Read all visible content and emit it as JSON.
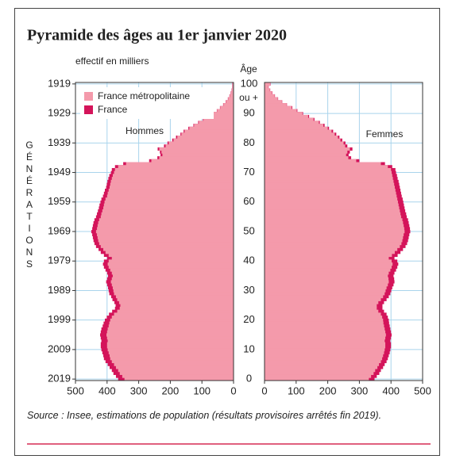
{
  "chart_data": {
    "type": "pyramid",
    "title": "Pyramide des âges au 1er janvier 2020",
    "subtitle": "effectif en milliers",
    "y_label": "Âge",
    "y_top_note": "ou +",
    "generations_label": "GÉNÉRATIONS",
    "left_label": "Hommes",
    "right_label": "Femmes",
    "source": "Source : Insee, estimations de population (résultats provisoires arrêtés fin 2019).",
    "y": [
      0,
      1,
      2,
      3,
      4,
      5,
      6,
      7,
      8,
      9,
      10,
      11,
      12,
      13,
      14,
      15,
      16,
      17,
      18,
      19,
      20,
      21,
      22,
      23,
      24,
      25,
      26,
      27,
      28,
      29,
      30,
      31,
      32,
      33,
      34,
      35,
      36,
      37,
      38,
      39,
      40,
      41,
      42,
      43,
      44,
      45,
      46,
      47,
      48,
      49,
      50,
      51,
      52,
      53,
      54,
      55,
      56,
      57,
      58,
      59,
      60,
      61,
      62,
      63,
      64,
      65,
      66,
      67,
      68,
      69,
      70,
      71,
      72,
      73,
      74,
      75,
      76,
      77,
      78,
      79,
      80,
      81,
      82,
      83,
      84,
      85,
      86,
      87,
      88,
      89,
      90,
      91,
      92,
      93,
      94,
      95,
      96,
      97,
      98,
      99,
      100
    ],
    "series": [
      {
        "name": "France métropolitaine",
        "color": "#f49aab",
        "men": [
          345,
          352,
          360,
          365,
          372,
          378,
          385,
          390,
          392,
          395,
          398,
          400,
          400,
          398,
          400,
          402,
          400,
          398,
          395,
          393,
          390,
          385,
          378,
          368,
          360,
          358,
          362,
          368,
          372,
          378,
          380,
          382,
          385,
          388,
          385,
          382,
          385,
          390,
          395,
          398,
          395,
          385,
          395,
          405,
          412,
          420,
          425,
          428,
          430,
          432,
          435,
          432,
          430,
          428,
          425,
          420,
          418,
          415,
          412,
          410,
          408,
          405,
          400,
          398,
          395,
          392,
          390,
          388,
          385,
          382,
          378,
          375,
          365,
          340,
          260,
          235,
          225,
          228,
          235,
          215,
          205,
          190,
          178,
          165,
          155,
          140,
          125,
          110,
          95,
          80,
          65,
          52,
          42,
          32,
          24,
          17,
          12,
          8,
          5,
          3,
          3
        ],
        "women": [
          330,
          337,
          345,
          350,
          357,
          362,
          368,
          372,
          375,
          378,
          380,
          382,
          382,
          380,
          382,
          384,
          382,
          380,
          378,
          376,
          375,
          372,
          368,
          360,
          355,
          355,
          360,
          368,
          375,
          380,
          383,
          386,
          390,
          393,
          392,
          390,
          393,
          398,
          402,
          405,
          402,
          393,
          403,
          412,
          420,
          428,
          433,
          436,
          438,
          440,
          443,
          442,
          440,
          438,
          436,
          432,
          430,
          428,
          426,
          424,
          422,
          420,
          418,
          416,
          414,
          412,
          410,
          408,
          406,
          404,
          402,
          400,
          390,
          368,
          290,
          265,
          258,
          262,
          270,
          255,
          250,
          240,
          232,
          222,
          212,
          200,
          186,
          172,
          155,
          138,
          120,
          102,
          86,
          70,
          55,
          42,
          32,
          24,
          17,
          12,
          18
        ]
      },
      {
        "name": "France",
        "color": "#d4145a",
        "men": [
          365,
          372,
          380,
          385,
          392,
          398,
          405,
          410,
          412,
          415,
          418,
          420,
          420,
          418,
          420,
          422,
          420,
          418,
          414,
          411,
          407,
          401,
          394,
          384,
          375,
          373,
          377,
          383,
          387,
          393,
          395,
          397,
          400,
          403,
          400,
          397,
          400,
          405,
          410,
          413,
          410,
          400,
          410,
          420,
          427,
          435,
          440,
          443,
          445,
          447,
          450,
          447,
          445,
          443,
          440,
          435,
          432,
          429,
          426,
          424,
          421,
          418,
          413,
          410,
          407,
          403,
          401,
          399,
          396,
          393,
          388,
          385,
          375,
          349,
          267,
          241,
          231,
          233,
          240,
          220,
          209,
          194,
          182,
          168,
          158,
          143,
          127,
          112,
          97,
          82,
          66,
          53,
          43,
          33,
          25,
          18,
          13,
          9,
          6,
          4,
          4
        ],
        "women": [
          348,
          355,
          363,
          368,
          375,
          380,
          386,
          390,
          393,
          396,
          398,
          400,
          400,
          398,
          400,
          402,
          400,
          398,
          396,
          394,
          393,
          390,
          386,
          378,
          373,
          373,
          378,
          386,
          393,
          398,
          401,
          404,
          408,
          411,
          410,
          408,
          411,
          416,
          420,
          423,
          420,
          411,
          421,
          430,
          438,
          446,
          451,
          454,
          456,
          458,
          461,
          460,
          458,
          456,
          454,
          450,
          448,
          445,
          443,
          441,
          439,
          437,
          434,
          432,
          430,
          428,
          426,
          424,
          421,
          419,
          416,
          414,
          404,
          381,
          300,
          274,
          266,
          270,
          278,
          262,
          256,
          246,
          237,
          227,
          217,
          204,
          190,
          175,
          158,
          141,
          122,
          104,
          88,
          71,
          56,
          43,
          33,
          25,
          18,
          13,
          19
        ]
      }
    ],
    "xlim": [
      0,
      500
    ],
    "xticks": [
      0,
      100,
      200,
      300,
      400,
      500
    ],
    "ylim": [
      -0.5,
      100.5
    ],
    "yticks": [
      0,
      10,
      20,
      30,
      40,
      50,
      60,
      70,
      80,
      90,
      100
    ],
    "generation_ticks": [
      {
        "value": 0,
        "label": "2019"
      },
      {
        "value": 10,
        "label": "2009"
      },
      {
        "value": 20,
        "label": "1999"
      },
      {
        "value": 30,
        "label": "1989"
      },
      {
        "value": 40,
        "label": "1979"
      },
      {
        "value": 50,
        "label": "1969"
      },
      {
        "value": 60,
        "label": "1959"
      },
      {
        "value": 70,
        "label": "1949"
      },
      {
        "value": 80,
        "label": "1939"
      },
      {
        "value": 90,
        "label": "1929"
      },
      {
        "value": 100,
        "label": "1919"
      }
    ],
    "grid": true,
    "grid_color": "#a9d4ec"
  }
}
